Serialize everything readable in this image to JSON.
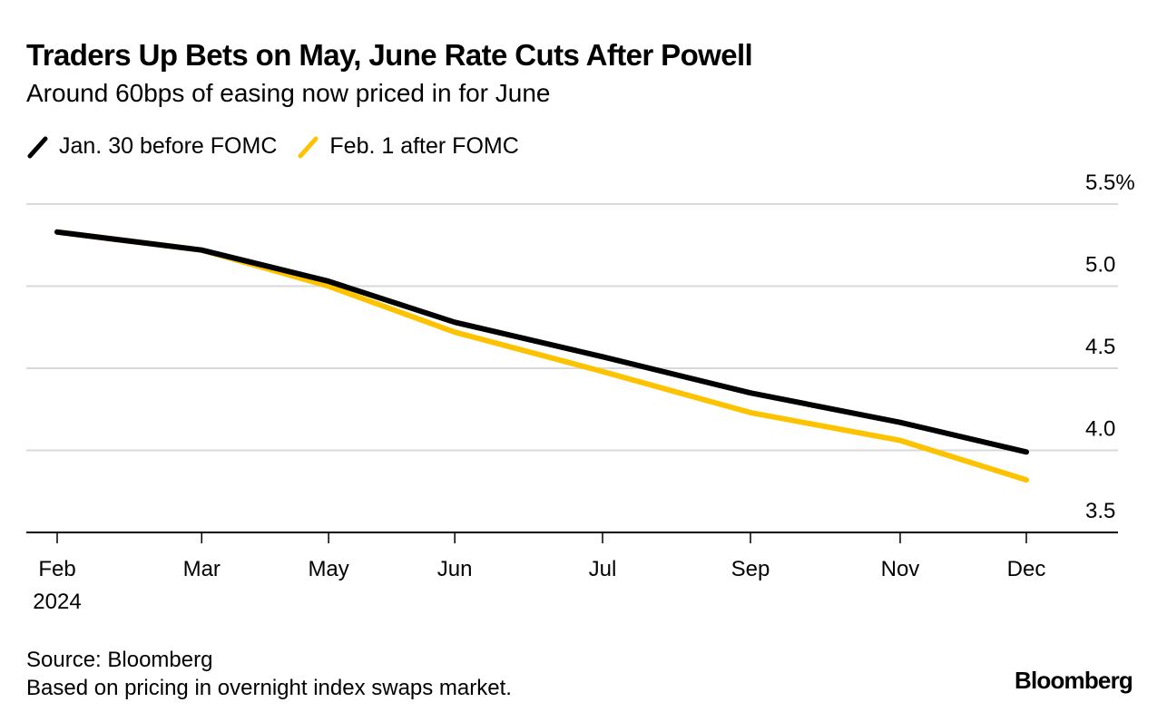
{
  "header": {
    "title": "Traders Up Bets on May, June Rate Cuts After Powell",
    "subtitle": "Around 60bps of easing now priced in for June"
  },
  "legend": [
    {
      "label": "Jan. 30 before FOMC",
      "color": "#000000",
      "icon": "diagonal-line-icon"
    },
    {
      "label": "Feb. 1 after FOMC",
      "color": "#fdc300",
      "icon": "diagonal-line-icon"
    }
  ],
  "chart_data": {
    "type": "line",
    "title": "Traders Up Bets on May, June Rate Cuts After Powell",
    "subtitle": "Around 60bps of easing now priced in for June",
    "xlabel": "",
    "ylabel": "",
    "x": [
      "Feb 2024",
      "Mar",
      "May",
      "Jun",
      "Jul",
      "Sep",
      "Nov",
      "Dec"
    ],
    "x_tick_labels": [
      "Feb",
      "Mar",
      "May",
      "Jun",
      "Jul",
      "Sep",
      "Nov",
      "Dec"
    ],
    "x_year_label": "2024",
    "x_positions": [
      0,
      1,
      2,
      3,
      4,
      5,
      6,
      7
    ],
    "x_spacing": [
      0,
      0.977,
      1.835,
      2.688,
      3.687,
      4.687,
      5.699,
      6.552
    ],
    "ylim": [
      3.5,
      5.5
    ],
    "y_ticks": [
      3.5,
      4.0,
      4.5,
      5.0,
      5.5
    ],
    "y_tick_labels": [
      "3.5",
      "4.0",
      "4.5",
      "5.0",
      "5.5%"
    ],
    "y_axis_side": "right",
    "grid": true,
    "legend_placement": "top-left",
    "series": [
      {
        "name": "Jan. 30 before FOMC",
        "color": "#000000",
        "values": [
          5.33,
          5.22,
          5.03,
          4.78,
          4.57,
          4.35,
          4.17,
          3.99
        ]
      },
      {
        "name": "Feb. 1 after FOMC",
        "color": "#fdc300",
        "values": [
          5.33,
          5.22,
          5.0,
          4.72,
          4.48,
          4.23,
          4.06,
          3.82
        ]
      }
    ]
  },
  "footer": {
    "source": "Source: Bloomberg",
    "note": "Based on pricing in overnight index swaps market.",
    "logo": "Bloomberg"
  }
}
